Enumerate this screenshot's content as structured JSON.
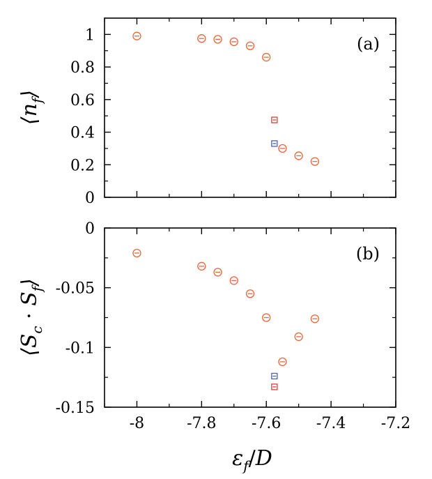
{
  "chart_data": [
    {
      "type": "scatter",
      "panel": "(a)",
      "ylabel": "⟨n_f⟩",
      "xlim": [
        -8.1,
        -7.2
      ],
      "ylim": [
        0,
        1.1
      ],
      "yticks": [
        0,
        0.2,
        0.4,
        0.6,
        0.8,
        1
      ],
      "ytick_labels": [
        "0",
        "0.2",
        "0.4",
        "0.6",
        "0.8",
        "1"
      ],
      "series": [
        {
          "name": "circles",
          "marker": "circle",
          "color": "#e8663a",
          "x": [
            -8.0,
            -7.8,
            -7.75,
            -7.7,
            -7.65,
            -7.6,
            -7.55,
            -7.5,
            -7.45
          ],
          "y": [
            0.99,
            0.975,
            0.97,
            0.955,
            0.93,
            0.86,
            0.3,
            0.255,
            0.22
          ]
        },
        {
          "name": "red squares",
          "marker": "square",
          "color": "#e03c3c",
          "x": [
            -7.575
          ],
          "y": [
            0.475
          ]
        },
        {
          "name": "blue squares",
          "marker": "square",
          "color": "#4a5ad8",
          "x": [
            -7.575
          ],
          "y": [
            0.33
          ]
        }
      ]
    },
    {
      "type": "scatter",
      "panel": "(b)",
      "ylabel": "⟨S_c · S_f⟩",
      "xlabel": "ε_f / D",
      "xlim": [
        -8.1,
        -7.2
      ],
      "ylim": [
        -0.15,
        0
      ],
      "xticks": [
        -8,
        -7.8,
        -7.6,
        -7.4,
        -7.2
      ],
      "xtick_labels": [
        "-8",
        "-7.8",
        "-7.6",
        "-7.4",
        "-7.2"
      ],
      "yticks": [
        -0.15,
        -0.1,
        -0.05,
        0
      ],
      "ytick_labels": [
        "-0.15",
        "-0.1",
        "-0.05",
        "0"
      ],
      "series": [
        {
          "name": "circles",
          "marker": "circle",
          "color": "#e8663a",
          "x": [
            -8.0,
            -7.8,
            -7.75,
            -7.7,
            -7.65,
            -7.6,
            -7.55,
            -7.5,
            -7.45
          ],
          "y": [
            -0.021,
            -0.032,
            -0.037,
            -0.044,
            -0.055,
            -0.075,
            -0.112,
            -0.091,
            -0.076
          ]
        },
        {
          "name": "red squares",
          "marker": "square",
          "color": "#e03c3c",
          "x": [
            -7.575
          ],
          "y": [
            -0.133
          ]
        },
        {
          "name": "blue squares",
          "marker": "square",
          "color": "#4a5ad8",
          "x": [
            -7.575
          ],
          "y": [
            -0.124
          ]
        }
      ]
    }
  ]
}
